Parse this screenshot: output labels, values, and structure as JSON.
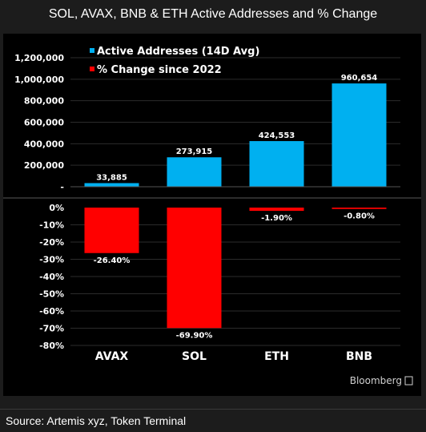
{
  "title": "SOL, AVAX, BNB & ETH Active Addresses and % Change",
  "source": "Source: Artemis xyz, Token Terminal",
  "brand": "Bloomberg",
  "colors": {
    "series_addresses": "#00b0f0",
    "series_change": "#ff0000",
    "background": "#000000"
  },
  "chart_data": [
    {
      "type": "bar",
      "categories": [
        "AVAX",
        "SOL",
        "ETH",
        "BNB"
      ],
      "series": [
        {
          "name": "Active Addresses (14D Avg)",
          "values": [
            33885,
            273915,
            424553,
            960654
          ],
          "labels": [
            "33,885",
            "273,915",
            "424,553",
            "960,654"
          ]
        }
      ],
      "yticks": [
        "-",
        "200,000",
        "400,000",
        "600,000",
        "800,000",
        "1,000,000",
        "1,200,000"
      ],
      "ylim": [
        0,
        1200000
      ],
      "legend_position": "top-left",
      "grid": true
    },
    {
      "type": "bar",
      "categories": [
        "AVAX",
        "SOL",
        "ETH",
        "BNB"
      ],
      "series": [
        {
          "name": "% Change since 2022",
          "values": [
            -26.4,
            -69.9,
            -1.9,
            -0.8
          ],
          "labels": [
            "-26.40%",
            "-69.90%",
            "-1.90%",
            "-0.80%"
          ]
        }
      ],
      "yticks": [
        "0%",
        "-10%",
        "-20%",
        "-30%",
        "-40%",
        "-50%",
        "-60%",
        "-70%",
        "-80%"
      ],
      "ylim": [
        -80,
        0
      ],
      "grid": true
    }
  ]
}
